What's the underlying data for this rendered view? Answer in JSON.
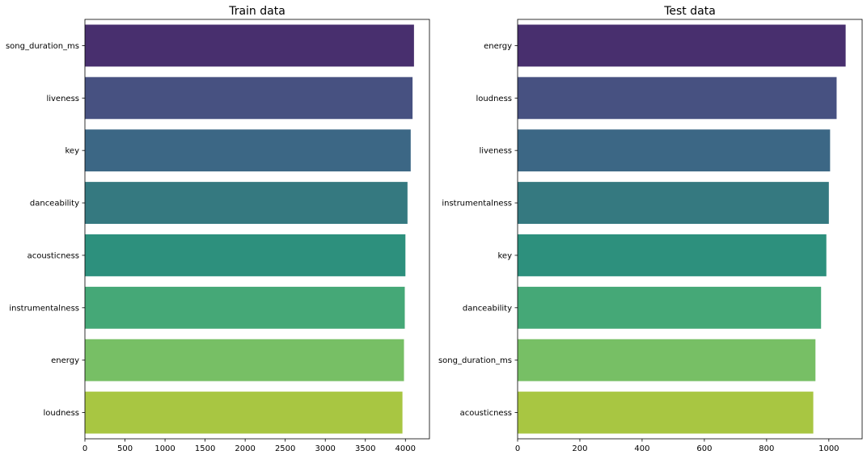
{
  "chart_data": [
    {
      "type": "bar",
      "orientation": "horizontal",
      "title": "Train data",
      "categories": [
        "song_duration_ms",
        "liveness",
        "key",
        "danceability",
        "acousticness",
        "instrumentalness",
        "energy",
        "loudness"
      ],
      "values": [
        4107,
        4089,
        4066,
        4026,
        4000,
        3992,
        3982,
        3963
      ],
      "xlim": [
        0,
        4300
      ],
      "xticks": [
        0,
        500,
        1000,
        1500,
        2000,
        2500,
        3000,
        3500,
        4000
      ],
      "xlabel": "",
      "ylabel": "",
      "grid": false,
      "colors": [
        "#482f6e",
        "#475181",
        "#3c6785",
        "#357980",
        "#2d907d",
        "#45a877",
        "#77bf65",
        "#a8c642"
      ]
    },
    {
      "type": "bar",
      "orientation": "horizontal",
      "title": "Test data",
      "categories": [
        "energy",
        "loudness",
        "liveness",
        "instrumentalness",
        "key",
        "danceability",
        "song_duration_ms",
        "acousticness"
      ],
      "values": [
        1054,
        1025,
        1004,
        1000,
        992,
        975,
        957,
        950
      ],
      "xlim": [
        0,
        1107
      ],
      "xticks": [
        0,
        200,
        400,
        600,
        800,
        1000
      ],
      "xlabel": "",
      "ylabel": "",
      "grid": false,
      "colors": [
        "#482f6e",
        "#475181",
        "#3c6785",
        "#357980",
        "#2d907d",
        "#45a877",
        "#77bf65",
        "#a8c642"
      ]
    }
  ]
}
